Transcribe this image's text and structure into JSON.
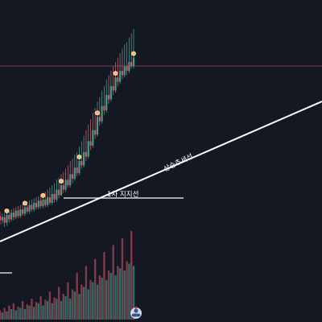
{
  "chart_data": {
    "type": "candlestick",
    "annotations": {
      "trendline_label": "상승추세선",
      "support_label": "1차 지지선"
    },
    "price_series": [
      [
        0,
        262,
        258,
        266,
        254
      ],
      [
        1,
        258,
        261,
        264,
        255
      ],
      [
        2,
        261,
        256,
        265,
        252
      ],
      [
        3,
        256,
        263,
        266,
        253
      ],
      [
        4,
        263,
        259,
        267,
        256
      ],
      [
        5,
        259,
        265,
        268,
        257
      ],
      [
        6,
        265,
        261,
        269,
        258
      ],
      [
        7,
        261,
        267,
        270,
        259
      ],
      [
        8,
        267,
        262,
        271,
        260
      ],
      [
        9,
        262,
        268,
        272,
        260
      ],
      [
        10,
        268,
        264,
        273,
        262
      ],
      [
        11,
        264,
        270,
        274,
        262
      ],
      [
        12,
        270,
        266,
        275,
        264
      ],
      [
        13,
        266,
        272,
        276,
        264
      ],
      [
        14,
        272,
        268,
        277,
        266
      ],
      [
        15,
        268,
        274,
        278,
        266
      ],
      [
        16,
        274,
        270,
        279,
        268
      ],
      [
        17,
        270,
        276,
        280,
        268
      ],
      [
        18,
        276,
        271,
        282,
        269
      ],
      [
        19,
        271,
        277,
        283,
        269
      ],
      [
        20,
        277,
        272,
        284,
        270
      ],
      [
        21,
        272,
        279,
        286,
        270
      ],
      [
        22,
        279,
        274,
        288,
        272
      ],
      [
        23,
        274,
        282,
        290,
        272
      ],
      [
        24,
        282,
        277,
        292,
        274
      ],
      [
        25,
        277,
        286,
        295,
        275
      ],
      [
        26,
        286,
        281,
        297,
        278
      ],
      [
        27,
        281,
        290,
        300,
        280
      ],
      [
        28,
        290,
        286,
        302,
        283
      ],
      [
        29,
        286,
        295,
        305,
        284
      ],
      [
        30,
        295,
        290,
        308,
        288
      ],
      [
        31,
        290,
        300,
        312,
        288
      ],
      [
        32,
        300,
        296,
        314,
        292
      ],
      [
        33,
        296,
        306,
        318,
        294
      ],
      [
        34,
        306,
        301,
        320,
        298
      ],
      [
        35,
        301,
        312,
        325,
        299
      ],
      [
        36,
        312,
        308,
        330,
        305
      ],
      [
        37,
        308,
        320,
        335,
        306
      ],
      [
        38,
        320,
        316,
        340,
        312
      ],
      [
        39,
        316,
        330,
        345,
        314
      ],
      [
        40,
        330,
        326,
        350,
        322
      ],
      [
        41,
        326,
        340,
        356,
        324
      ],
      [
        42,
        340,
        336,
        360,
        332
      ],
      [
        43,
        336,
        352,
        366,
        334
      ],
      [
        44,
        352,
        348,
        370,
        344
      ],
      [
        45,
        348,
        362,
        376,
        346
      ],
      [
        46,
        362,
        358,
        380,
        354
      ],
      [
        47,
        358,
        372,
        386,
        356
      ],
      [
        48,
        372,
        368,
        390,
        364
      ],
      [
        49,
        368,
        380,
        394,
        366
      ],
      [
        50,
        380,
        376,
        398,
        372
      ],
      [
        51,
        376,
        388,
        402,
        374
      ],
      [
        52,
        388,
        384,
        406,
        380
      ],
      [
        53,
        384,
        394,
        410,
        382
      ],
      [
        54,
        394,
        390,
        414,
        386
      ],
      [
        55,
        390,
        398,
        418,
        388
      ],
      [
        56,
        398,
        394,
        420,
        390
      ],
      [
        57,
        394,
        402,
        424,
        392
      ],
      [
        58,
        402,
        398,
        428,
        396
      ],
      [
        59,
        398,
        406,
        432,
        396
      ]
    ],
    "volume": [
      8,
      6,
      10,
      7,
      12,
      9,
      14,
      8,
      11,
      10,
      16,
      9,
      13,
      12,
      18,
      11,
      15,
      14,
      20,
      12,
      17,
      16,
      24,
      14,
      19,
      18,
      28,
      16,
      22,
      20,
      32,
      18,
      26,
      24,
      40,
      22,
      30,
      28,
      46,
      26,
      34,
      32,
      52,
      30,
      38,
      36,
      58,
      34,
      42,
      40,
      64,
      38,
      46,
      44,
      70,
      42,
      50,
      48,
      76,
      46
    ],
    "colors": {
      "background": "#141823",
      "up": "#2fa58f",
      "down": "#e2535e",
      "volume_up": "#1f7f73",
      "volume_down": "#8f3d4b",
      "trendline": "#ffffff",
      "support_line": "#ffffff",
      "price_line": "#8b3c4e",
      "signal": "#f2c15a"
    }
  }
}
